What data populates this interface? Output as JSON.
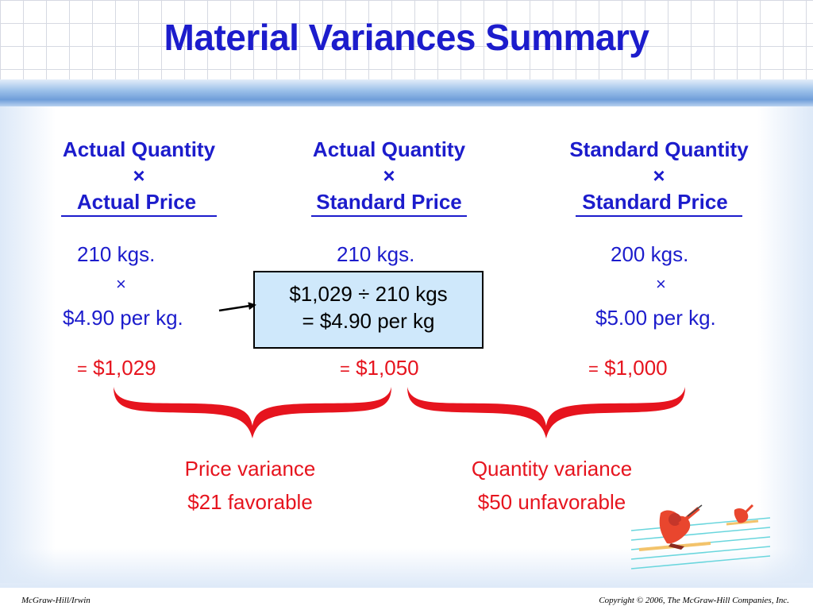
{
  "title": "Material Variances Summary",
  "columns": [
    {
      "header1": "Actual Quantity",
      "times": "×",
      "header2": "Actual Price",
      "qty": "210 kgs.",
      "times2": "×",
      "price": "$4.90 per kg.",
      "eq": "=",
      "total": "$1,029"
    },
    {
      "header1": "Actual Quantity",
      "times": "×",
      "header2": "Standard Price",
      "qty": "210 kgs.",
      "eq": "=",
      "total": "$1,050"
    },
    {
      "header1": "Standard Quantity",
      "times": "×",
      "header2": "Standard Price",
      "qty": "200 kgs.",
      "times2": "×",
      "price": "$5.00 per kg.",
      "eq": "=",
      "total": "$1,000"
    }
  ],
  "calc_box": {
    "line1": "$1,029 ÷ 210 kgs",
    "line2": "= $4.90 per kg"
  },
  "variances": {
    "price": {
      "label": "Price variance",
      "amount": "$21 favorable"
    },
    "quantity": {
      "label": "Quantity variance",
      "amount": "$50 unfavorable"
    }
  },
  "footer": {
    "left": "McGraw-Hill/Irwin",
    "right": "Copyright © 2006, The McGraw-Hill Companies, Inc."
  },
  "colors": {
    "title": "#1c1ccc",
    "text": "#1c1ccc",
    "accent": "#e6141e",
    "box": "#cfe8fb"
  }
}
